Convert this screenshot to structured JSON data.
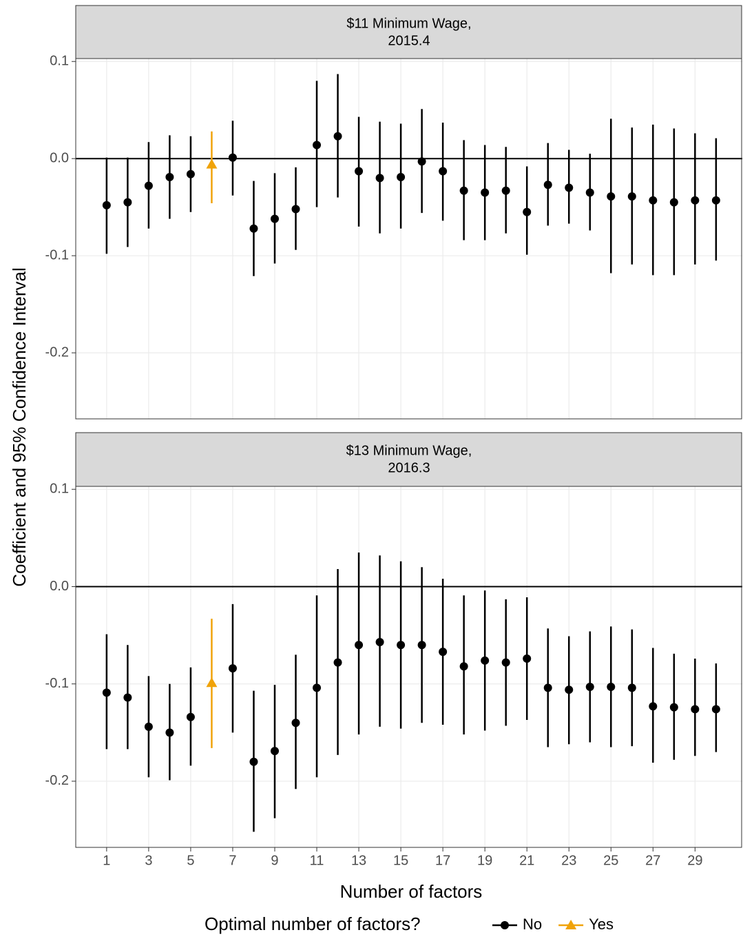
{
  "y_label": "Coefficient and 95% Confidence Interval",
  "x_label": "Number of factors",
  "legend": {
    "title": "Optimal number of factors?",
    "position": "bottom",
    "entries": [
      {
        "name": "No",
        "color": "#000000",
        "marker": "circle"
      },
      {
        "name": "Yes",
        "color": "#f0a30a",
        "marker": "triangle"
      }
    ]
  },
  "chart_data": [
    {
      "type": "errorbar",
      "title": [
        "$11 Minimum Wage,",
        "2015.4"
      ],
      "grid": true,
      "hline": 0,
      "x": [
        1,
        2,
        3,
        4,
        5,
        6,
        7,
        8,
        9,
        10,
        11,
        12,
        13,
        14,
        15,
        16,
        17,
        18,
        19,
        20,
        21,
        22,
        23,
        24,
        25,
        26,
        27,
        28,
        29,
        30
      ],
      "xlim": [
        -0.47,
        31.25
      ],
      "ylim": [
        -0.268,
        0.103
      ],
      "yticks": [
        0.1,
        {
          "value": 0,
          "label": "0.0"
        },
        -0.1,
        -0.2
      ],
      "series": [
        {
          "values": [
            -0.048,
            -0.045,
            -0.028,
            -0.019,
            -0.016,
            null,
            0.001,
            -0.072,
            -0.062,
            -0.052,
            0.014,
            0.023,
            -0.013,
            -0.02,
            -0.019,
            -0.003,
            -0.013,
            -0.033,
            -0.035,
            -0.033,
            -0.055,
            -0.027,
            -0.03,
            -0.035,
            -0.039,
            -0.039,
            -0.043,
            -0.045,
            -0.043,
            -0.043
          ],
          "lower": [
            -0.098,
            -0.091,
            -0.072,
            -0.062,
            -0.055,
            null,
            -0.038,
            -0.121,
            -0.108,
            -0.094,
            -0.05,
            -0.04,
            -0.07,
            -0.077,
            -0.072,
            -0.056,
            -0.064,
            -0.084,
            -0.084,
            -0.077,
            -0.099,
            -0.069,
            -0.067,
            -0.074,
            -0.118,
            -0.109,
            -0.12,
            -0.12,
            -0.109,
            -0.105
          ],
          "upper": [
            0.001,
            0.001,
            0.017,
            0.024,
            0.023,
            null,
            0.039,
            -0.023,
            -0.015,
            -0.009,
            0.08,
            0.087,
            0.043,
            0.038,
            0.036,
            0.051,
            0.037,
            0.019,
            0.014,
            0.012,
            -0.008,
            0.016,
            0.009,
            0.005,
            0.041,
            0.032,
            0.035,
            0.031,
            0.026,
            0.021
          ]
        },
        {
          "values": [
            null,
            null,
            null,
            null,
            null,
            -0.006,
            null,
            null,
            null,
            null,
            null,
            null,
            null,
            null,
            null,
            null,
            null,
            null,
            null,
            null,
            null,
            null,
            null,
            null,
            null,
            null,
            null,
            null,
            null,
            null
          ],
          "lower": [
            null,
            null,
            null,
            null,
            null,
            -0.046,
            null,
            null,
            null,
            null,
            null,
            null,
            null,
            null,
            null,
            null,
            null,
            null,
            null,
            null,
            null,
            null,
            null,
            null,
            null,
            null,
            null,
            null,
            null,
            null
          ],
          "upper": [
            null,
            null,
            null,
            null,
            null,
            0.028,
            null,
            null,
            null,
            null,
            null,
            null,
            null,
            null,
            null,
            null,
            null,
            null,
            null,
            null,
            null,
            null,
            null,
            null,
            null,
            null,
            null,
            null,
            null,
            null
          ]
        }
      ]
    },
    {
      "type": "errorbar",
      "title": [
        "$13 Minimum Wage,",
        "2016.3"
      ],
      "grid": true,
      "hline": 0,
      "x": [
        1,
        2,
        3,
        4,
        5,
        6,
        7,
        8,
        9,
        10,
        11,
        12,
        13,
        14,
        15,
        16,
        17,
        18,
        19,
        20,
        21,
        22,
        23,
        24,
        25,
        26,
        27,
        28,
        29,
        30
      ],
      "xlim": [
        -0.47,
        31.25
      ],
      "ylim": [
        -0.268,
        0.103
      ],
      "xticks": [
        1,
        3,
        5,
        7,
        9,
        11,
        13,
        15,
        17,
        19,
        21,
        23,
        25,
        27,
        29
      ],
      "yticks": [
        0.1,
        {
          "value": 0,
          "label": "0.0"
        },
        -0.1,
        -0.2
      ],
      "series": [
        {
          "values": [
            -0.109,
            -0.114,
            -0.144,
            -0.15,
            -0.134,
            null,
            -0.084,
            -0.18,
            -0.169,
            -0.14,
            -0.104,
            -0.078,
            -0.06,
            -0.057,
            -0.06,
            -0.06,
            -0.067,
            -0.082,
            -0.076,
            -0.078,
            -0.074,
            -0.104,
            -0.106,
            -0.103,
            -0.103,
            -0.104,
            -0.123,
            -0.124,
            -0.126,
            -0.126
          ],
          "lower": [
            -0.167,
            -0.167,
            -0.196,
            -0.199,
            -0.184,
            null,
            -0.15,
            -0.252,
            -0.238,
            -0.208,
            -0.196,
            -0.173,
            -0.152,
            -0.144,
            -0.146,
            -0.14,
            -0.142,
            -0.152,
            -0.148,
            -0.143,
            -0.137,
            -0.165,
            -0.162,
            -0.16,
            -0.165,
            -0.164,
            -0.181,
            -0.178,
            -0.174,
            -0.17
          ],
          "upper": [
            -0.049,
            -0.06,
            -0.092,
            -0.1,
            -0.083,
            null,
            -0.018,
            -0.107,
            -0.101,
            -0.07,
            -0.009,
            0.018,
            0.035,
            0.032,
            0.026,
            0.02,
            0.008,
            -0.009,
            -0.004,
            -0.013,
            -0.011,
            -0.043,
            -0.051,
            -0.046,
            -0.041,
            -0.044,
            -0.063,
            -0.069,
            -0.074,
            -0.079
          ]
        },
        {
          "values": [
            null,
            null,
            null,
            null,
            null,
            -0.099,
            null,
            null,
            null,
            null,
            null,
            null,
            null,
            null,
            null,
            null,
            null,
            null,
            null,
            null,
            null,
            null,
            null,
            null,
            null,
            null,
            null,
            null,
            null,
            null
          ],
          "lower": [
            null,
            null,
            null,
            null,
            null,
            -0.166,
            null,
            null,
            null,
            null,
            null,
            null,
            null,
            null,
            null,
            null,
            null,
            null,
            null,
            null,
            null,
            null,
            null,
            null,
            null,
            null,
            null,
            null,
            null,
            null
          ],
          "upper": [
            null,
            null,
            null,
            null,
            null,
            -0.033,
            null,
            null,
            null,
            null,
            null,
            null,
            null,
            null,
            null,
            null,
            null,
            null,
            null,
            null,
            null,
            null,
            null,
            null,
            null,
            null,
            null,
            null,
            null,
            null
          ]
        }
      ]
    }
  ]
}
